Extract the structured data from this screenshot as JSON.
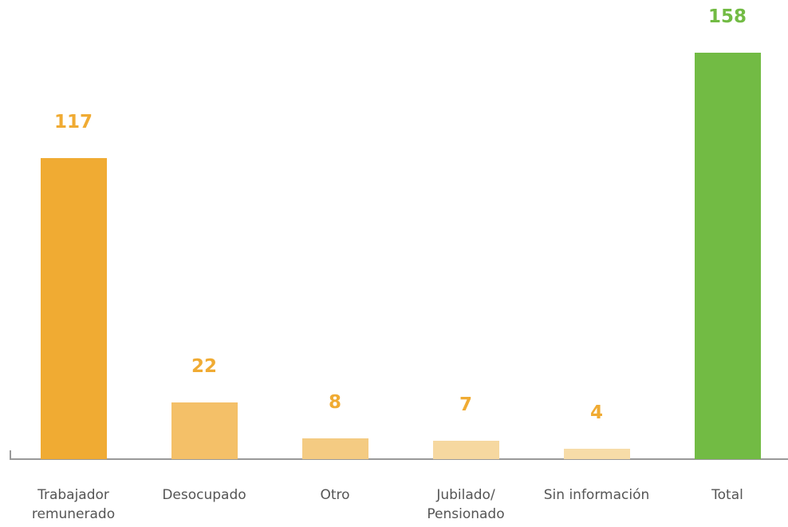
{
  "chart_data": {
    "type": "bar",
    "categories": [
      "Trabajador remunerado",
      "Desocupado",
      "Otro",
      "Jubilado/ Pensionado",
      "Sin información",
      "Total"
    ],
    "values": [
      117,
      22,
      8,
      7,
      4,
      158
    ],
    "colors": [
      "#f0ab33",
      "#f4c068",
      "#f4cb82",
      "#f6d8a0",
      "#f7dca8",
      "#72bb44"
    ],
    "label_colors": [
      "#f0ab33",
      "#f0ab33",
      "#f0ab33",
      "#f0ab33",
      "#f0ab33",
      "#72bb44"
    ],
    "ylim": [
      0,
      178.5
    ]
  }
}
